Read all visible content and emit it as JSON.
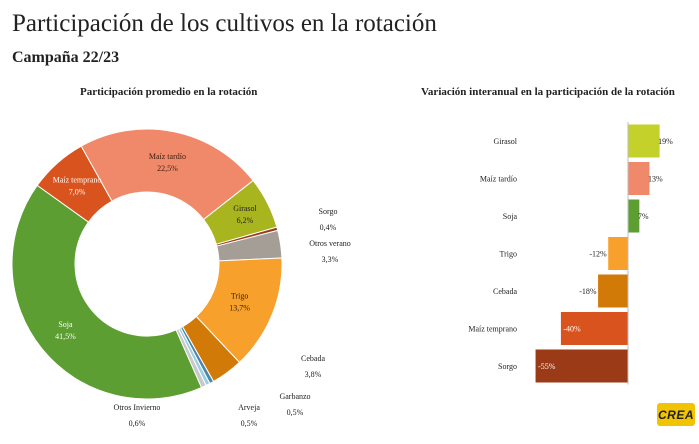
{
  "header": {
    "title": "Participación de los cultivos en la rotación",
    "subtitle": "Campaña 22/23"
  },
  "logo_text": "CREA",
  "chart_data": [
    {
      "type": "pie",
      "title": "Participación promedio en la rotación",
      "donut": true,
      "slices": [
        {
          "label": "Soja",
          "value": 41.5,
          "text": "41,5%",
          "color": "#5c9e32"
        },
        {
          "label": "Maíz temprano",
          "value": 7.0,
          "text": "7,0%",
          "color": "#d9531e"
        },
        {
          "label": "Maíz tardío",
          "value": 22.5,
          "text": "22,5%",
          "color": "#f0896a"
        },
        {
          "label": "Girasol",
          "value": 6.2,
          "text": "6,2%",
          "color": "#a8b51e"
        },
        {
          "label": "Sorgo",
          "value": 0.4,
          "text": "0,4%",
          "color": "#9b3a16"
        },
        {
          "label": "Otros verano",
          "value": 3.3,
          "text": "3,3%",
          "color": "#a59e97"
        },
        {
          "label": "Trigo",
          "value": 13.7,
          "text": "13,7%",
          "color": "#f7a02b"
        },
        {
          "label": "Cebada",
          "value": 3.8,
          "text": "3,8%",
          "color": "#d27a08"
        },
        {
          "label": "Garbanzo",
          "value": 0.5,
          "text": "0,5%",
          "color": "#4b86ab"
        },
        {
          "label": "Arveja",
          "value": 0.5,
          "text": "0,5%",
          "color": "#9ccfe6"
        },
        {
          "label": "Otros Invierno",
          "value": 0.6,
          "text": "0,6%",
          "color": "#c8c8c8"
        }
      ]
    },
    {
      "type": "bar",
      "orientation": "horizontal",
      "title": "Variación interanual en la participación de la rotación",
      "categories": [
        "Girasol",
        "Maíz tardío",
        "Soja",
        "Trigo",
        "Cebada",
        "Maíz temprano",
        "Sorgo"
      ],
      "values": [
        19,
        13,
        7,
        -12,
        -18,
        -40,
        -55
      ],
      "labels": [
        "19%",
        "13%",
        "7%",
        "-12%",
        "-18%",
        "-40%",
        "-55%"
      ],
      "colors": [
        "#c3d12a",
        "#f0896a",
        "#5c9e32",
        "#f7a02b",
        "#d27a08",
        "#d9531e",
        "#9b3a16"
      ],
      "xlim": [
        -60,
        25
      ]
    }
  ]
}
